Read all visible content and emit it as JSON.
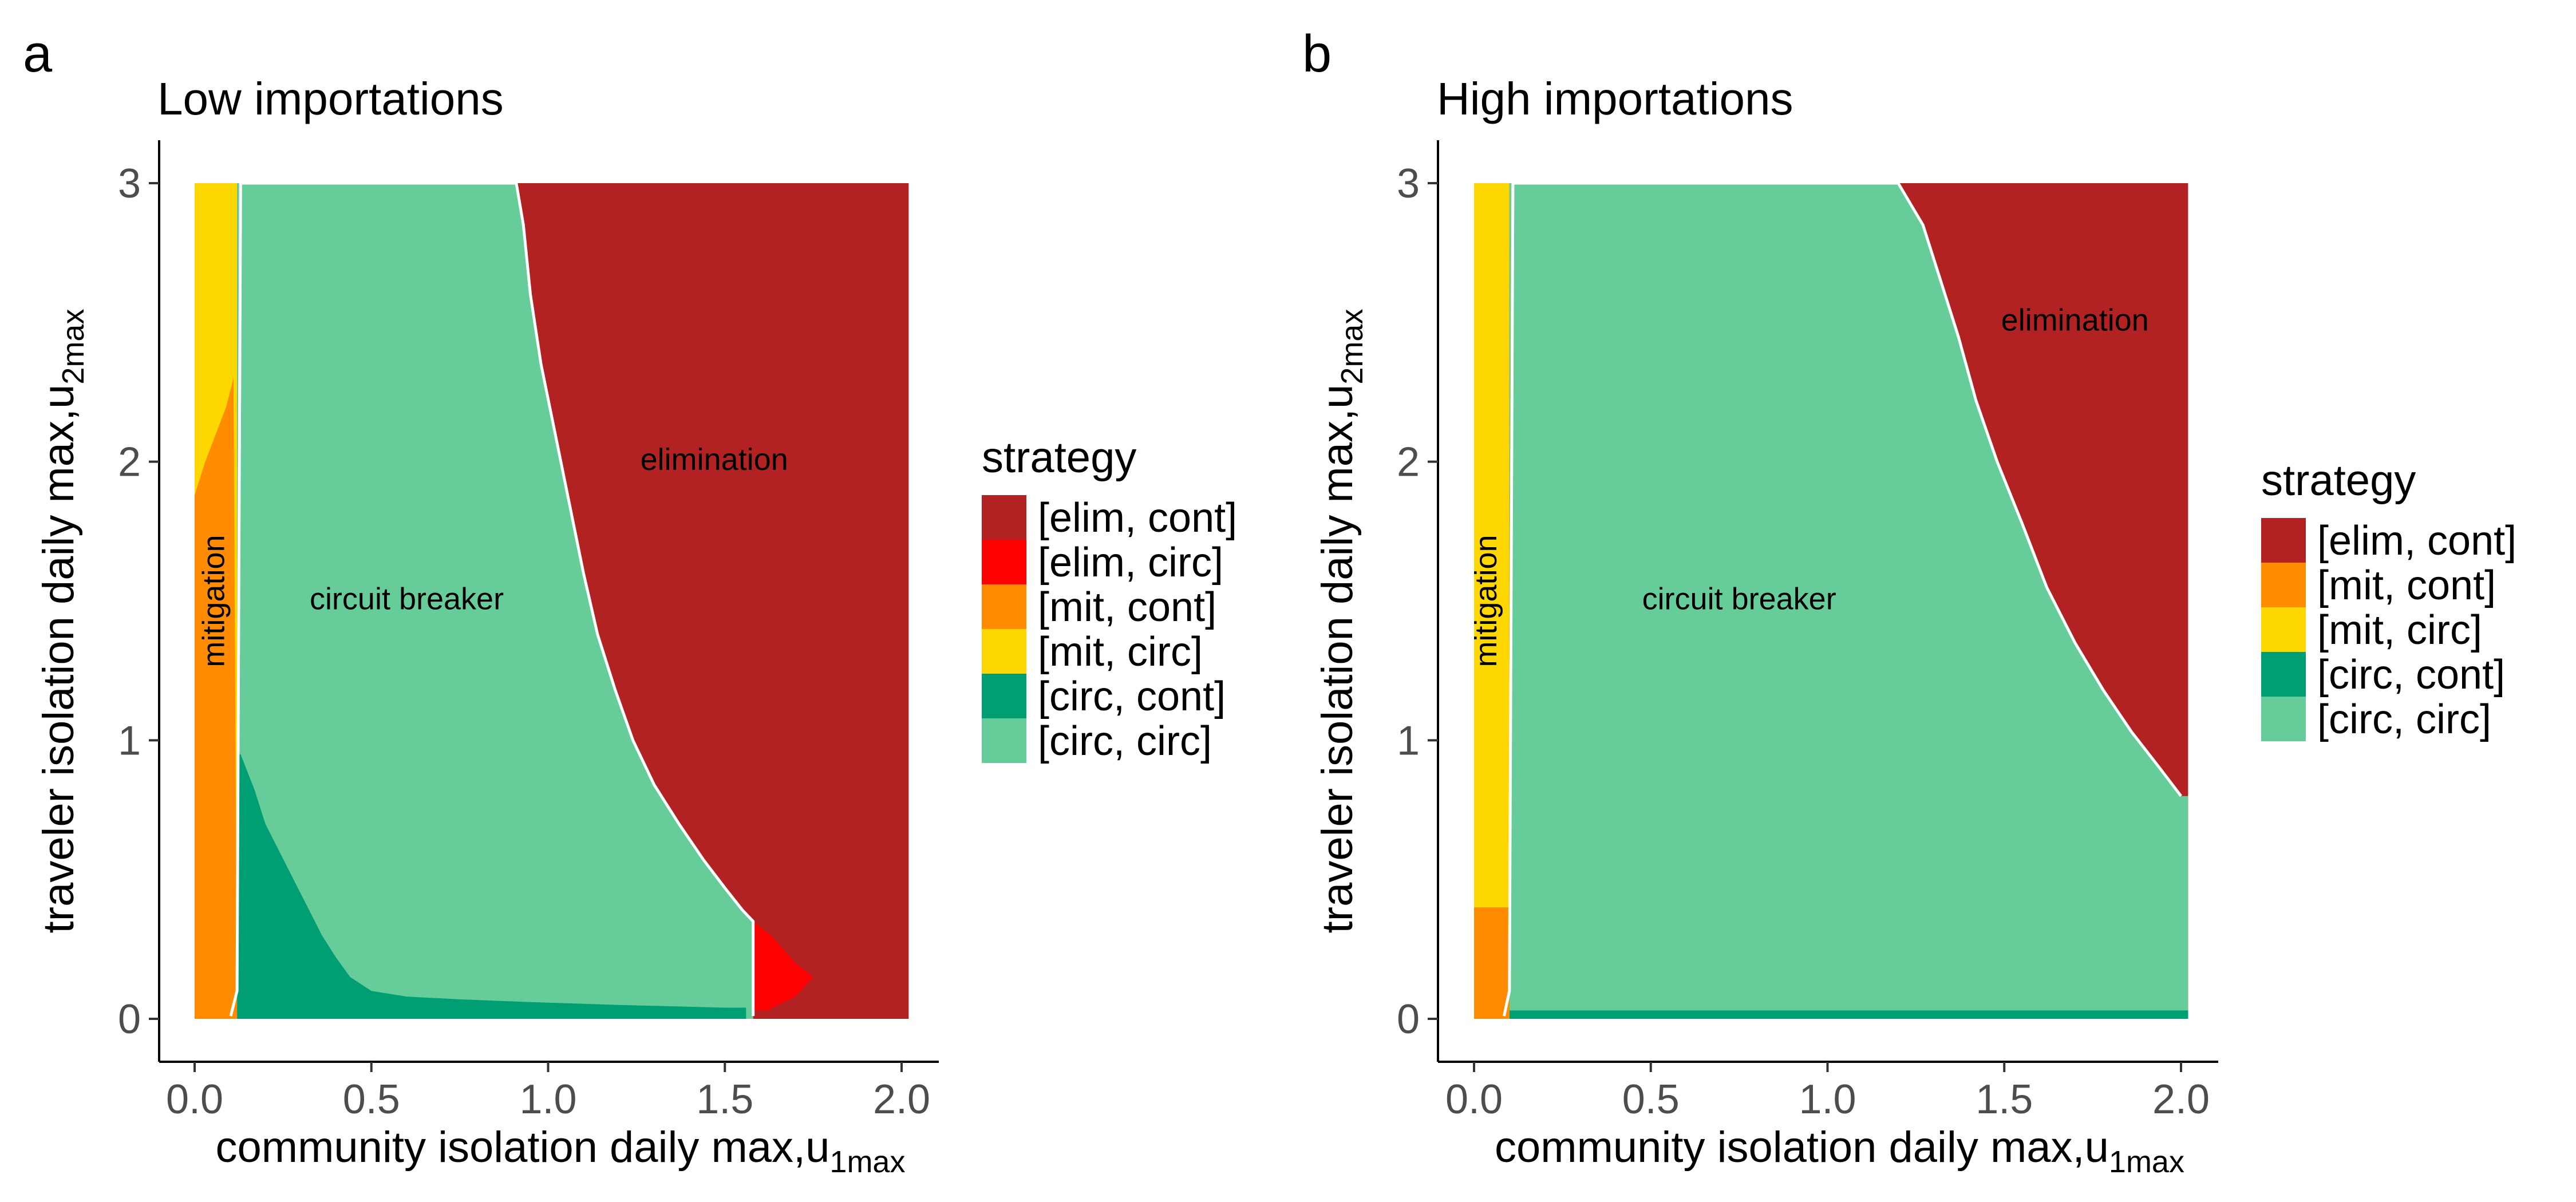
{
  "colors": {
    "elim_cont": "#b22222",
    "elim_circ": "#ff0000",
    "mit_cont": "#ff8c00",
    "mit_circ": "#ffd700",
    "circ_cont": "#009e73",
    "circ_circ": "#66cd9a",
    "boundary": "#ffffff"
  },
  "chart_data": [
    {
      "type": "heatmap",
      "panel": "a",
      "title": "Low importations",
      "xlabel": "community isolation daily max,u",
      "xlabel_sub": "1max",
      "ylabel": "traveler isolation daily max,u",
      "ylabel_sub": "2max",
      "xlim": [
        0,
        2
      ],
      "ylim": [
        0,
        3
      ],
      "xticks": [
        0,
        0.5,
        1,
        1.5,
        2
      ],
      "xtick_labels": [
        "0.0",
        "0.5",
        "1.0",
        "1.5",
        "2.0"
      ],
      "yticks": [
        0,
        1,
        2,
        3
      ],
      "ytick_labels": [
        "0",
        "1",
        "2",
        "3"
      ],
      "legend_title": "strategy",
      "legend": [
        {
          "label": "[elim, cont]",
          "color": "#b22222"
        },
        {
          "label": "[elim, circ]",
          "color": "#ff0000"
        },
        {
          "label": "[mit, cont]",
          "color": "#ff8c00"
        },
        {
          "label": "[mit, circ]",
          "color": "#ffd700"
        },
        {
          "label": "[circ, cont]",
          "color": "#009e73"
        },
        {
          "label": "[circ, circ]",
          "color": "#66cd9a"
        }
      ],
      "region_labels": [
        {
          "text": "mitigation",
          "x": 0.06,
          "y": 1.5,
          "rotate": true
        },
        {
          "text": "circuit breaker",
          "x": 0.6,
          "y": 1.5
        },
        {
          "text": "elimination",
          "x": 1.47,
          "y": 2.0
        }
      ],
      "elimination_boundary": [
        [
          0.91,
          3.0
        ],
        [
          0.93,
          2.85
        ],
        [
          0.95,
          2.6
        ],
        [
          0.98,
          2.35
        ],
        [
          1.02,
          2.1
        ],
        [
          1.06,
          1.85
        ],
        [
          1.1,
          1.6
        ],
        [
          1.14,
          1.38
        ],
        [
          1.19,
          1.18
        ],
        [
          1.24,
          1.0
        ],
        [
          1.3,
          0.84
        ],
        [
          1.37,
          0.7
        ],
        [
          1.44,
          0.57
        ],
        [
          1.5,
          0.47
        ],
        [
          1.55,
          0.39
        ],
        [
          1.58,
          0.35
        ]
      ],
      "circ_cont_boundary": [
        [
          0.13,
          0.95
        ],
        [
          0.17,
          0.82
        ],
        [
          0.2,
          0.7
        ],
        [
          0.24,
          0.6
        ],
        [
          0.28,
          0.5
        ],
        [
          0.32,
          0.4
        ],
        [
          0.36,
          0.3
        ],
        [
          0.4,
          0.22
        ],
        [
          0.44,
          0.15
        ],
        [
          0.5,
          0.1
        ],
        [
          0.6,
          0.08
        ],
        [
          0.75,
          0.07
        ],
        [
          0.95,
          0.06
        ],
        [
          1.2,
          0.05
        ],
        [
          1.5,
          0.04
        ],
        [
          1.56,
          0.04
        ]
      ],
      "mitigation_width": 0.12,
      "mit_split": [
        [
          0.0,
          1.88
        ],
        [
          0.03,
          2.0
        ],
        [
          0.06,
          2.1
        ],
        [
          0.09,
          2.2
        ],
        [
          0.11,
          2.3
        ]
      ],
      "elim_circ_region": [
        [
          1.58,
          0.35
        ],
        [
          1.63,
          0.3
        ],
        [
          1.7,
          0.2
        ],
        [
          1.75,
          0.15
        ],
        [
          1.7,
          0.08
        ],
        [
          1.62,
          0.03
        ],
        [
          1.58,
          0.03
        ]
      ]
    },
    {
      "type": "heatmap",
      "panel": "b",
      "title": "High importations",
      "xlabel": "community isolation daily max,u",
      "xlabel_sub": "1max",
      "ylabel": "traveler isolation daily max,u",
      "ylabel_sub": "2max",
      "xlim": [
        0,
        2
      ],
      "ylim": [
        0,
        3
      ],
      "xticks": [
        0,
        0.5,
        1,
        1.5,
        2
      ],
      "xtick_labels": [
        "0.0",
        "0.5",
        "1.0",
        "1.5",
        "2.0"
      ],
      "yticks": [
        0,
        1,
        2,
        3
      ],
      "ytick_labels": [
        "0",
        "1",
        "2",
        "3"
      ],
      "legend_title": "strategy",
      "legend": [
        {
          "label": "[elim, cont]",
          "color": "#b22222"
        },
        {
          "label": "[mit, cont]",
          "color": "#ff8c00"
        },
        {
          "label": "[mit, circ]",
          "color": "#ffd700"
        },
        {
          "label": "[circ, cont]",
          "color": "#009e73"
        },
        {
          "label": "[circ, circ]",
          "color": "#66cd9a"
        }
      ],
      "region_labels": [
        {
          "text": "mitigation",
          "x": 0.04,
          "y": 1.5,
          "rotate": true
        },
        {
          "text": "circuit breaker",
          "x": 0.75,
          "y": 1.5
        },
        {
          "text": "elimination",
          "x": 1.7,
          "y": 2.5
        }
      ],
      "elimination_boundary": [
        [
          1.2,
          3.0
        ],
        [
          1.27,
          2.85
        ],
        [
          1.32,
          2.65
        ],
        [
          1.37,
          2.45
        ],
        [
          1.42,
          2.22
        ],
        [
          1.48,
          2.0
        ],
        [
          1.55,
          1.78
        ],
        [
          1.62,
          1.55
        ],
        [
          1.7,
          1.35
        ],
        [
          1.78,
          1.18
        ],
        [
          1.86,
          1.03
        ],
        [
          1.94,
          0.9
        ],
        [
          2.0,
          0.8
        ]
      ],
      "circ_cont_strip": 0.03,
      "mitigation_width": 0.1,
      "mit_split": [
        [
          0.0,
          0.4
        ],
        [
          0.1,
          0.4
        ]
      ]
    }
  ]
}
